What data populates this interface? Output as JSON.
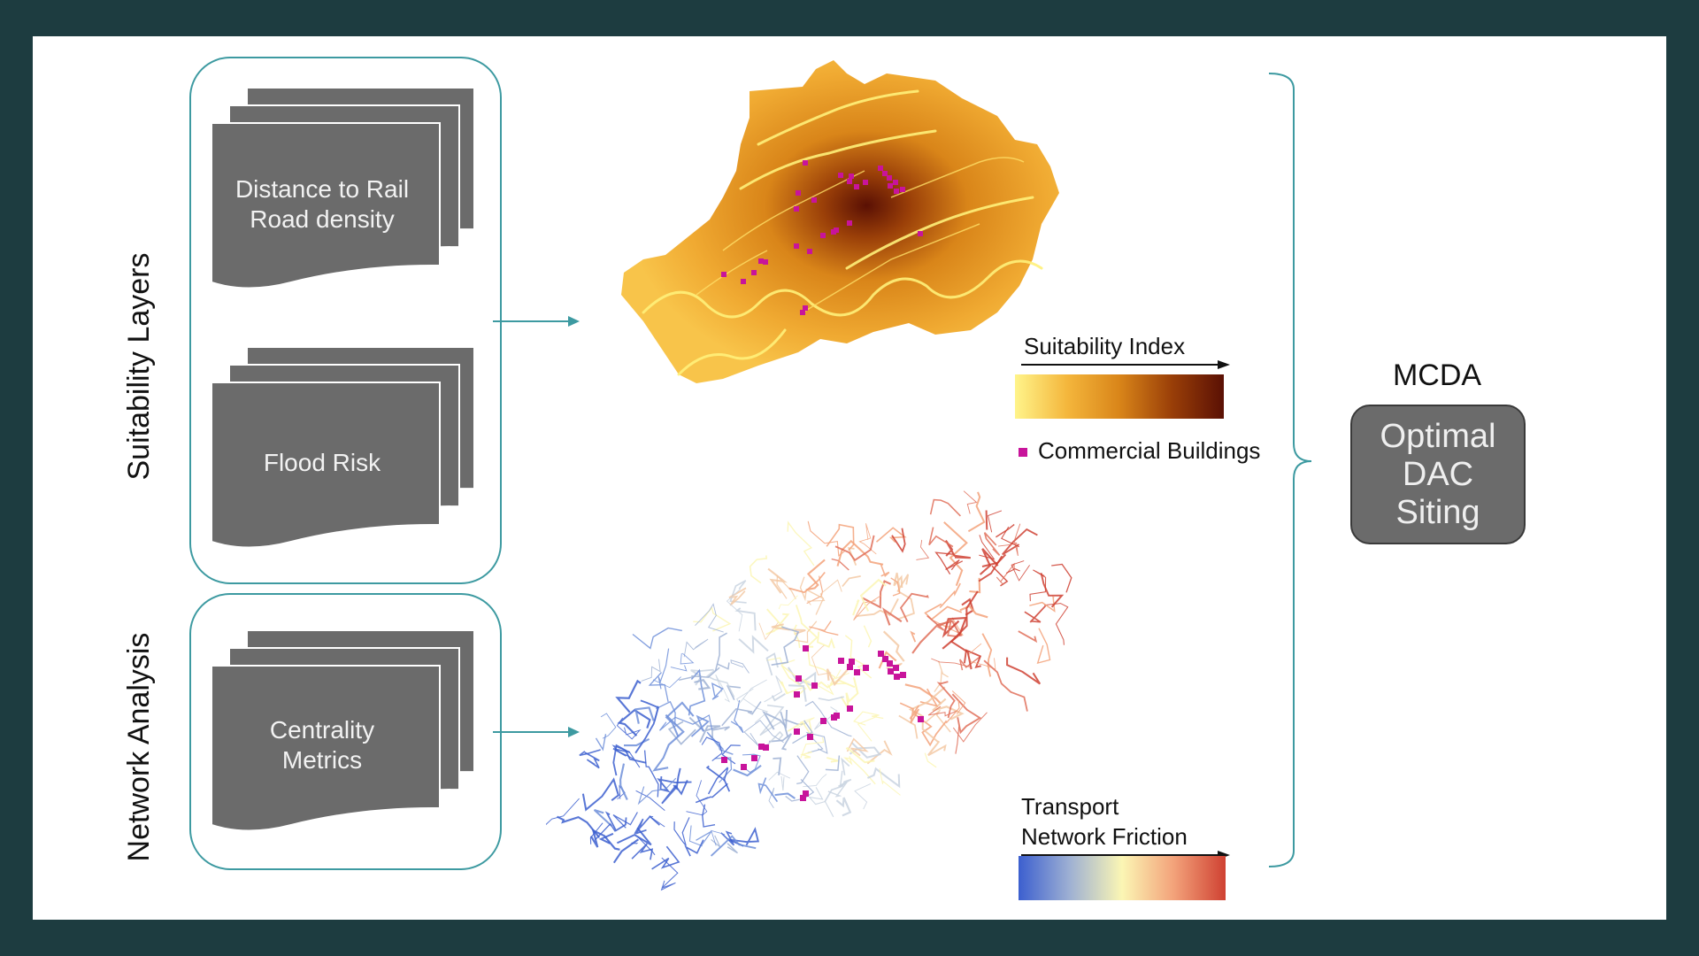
{
  "groups": {
    "suitability": {
      "label": "Suitability Layers",
      "docs": [
        {
          "label": "Distance to Rail\nRoad density"
        },
        {
          "label": "Flood Risk"
        }
      ]
    },
    "network": {
      "label": "Network Analysis",
      "docs": [
        {
          "label": "Centrality\nMetrics"
        }
      ]
    }
  },
  "legends": {
    "suitability_index": "Suitability  Index",
    "commercial_buildings": "Commercial Buildings",
    "transport_line1": "Transport",
    "transport_line2": "Network Friction"
  },
  "output": {
    "method": "MCDA",
    "result": "Optimal\nDAC\nSiting"
  },
  "colors": {
    "background": "#1d3c40",
    "accent_teal": "#3d9aa1",
    "doc_gray": "#6b6b6b",
    "building_magenta": "#c8149b",
    "suitability_gradient": [
      "#fff48a",
      "#f4b63c",
      "#d98519",
      "#9a3f08",
      "#5a1004"
    ],
    "friction_gradient": [
      "#3c5fcf",
      "#9fb1d3",
      "#fbf6b4",
      "#f3a27a",
      "#cf4132"
    ]
  }
}
